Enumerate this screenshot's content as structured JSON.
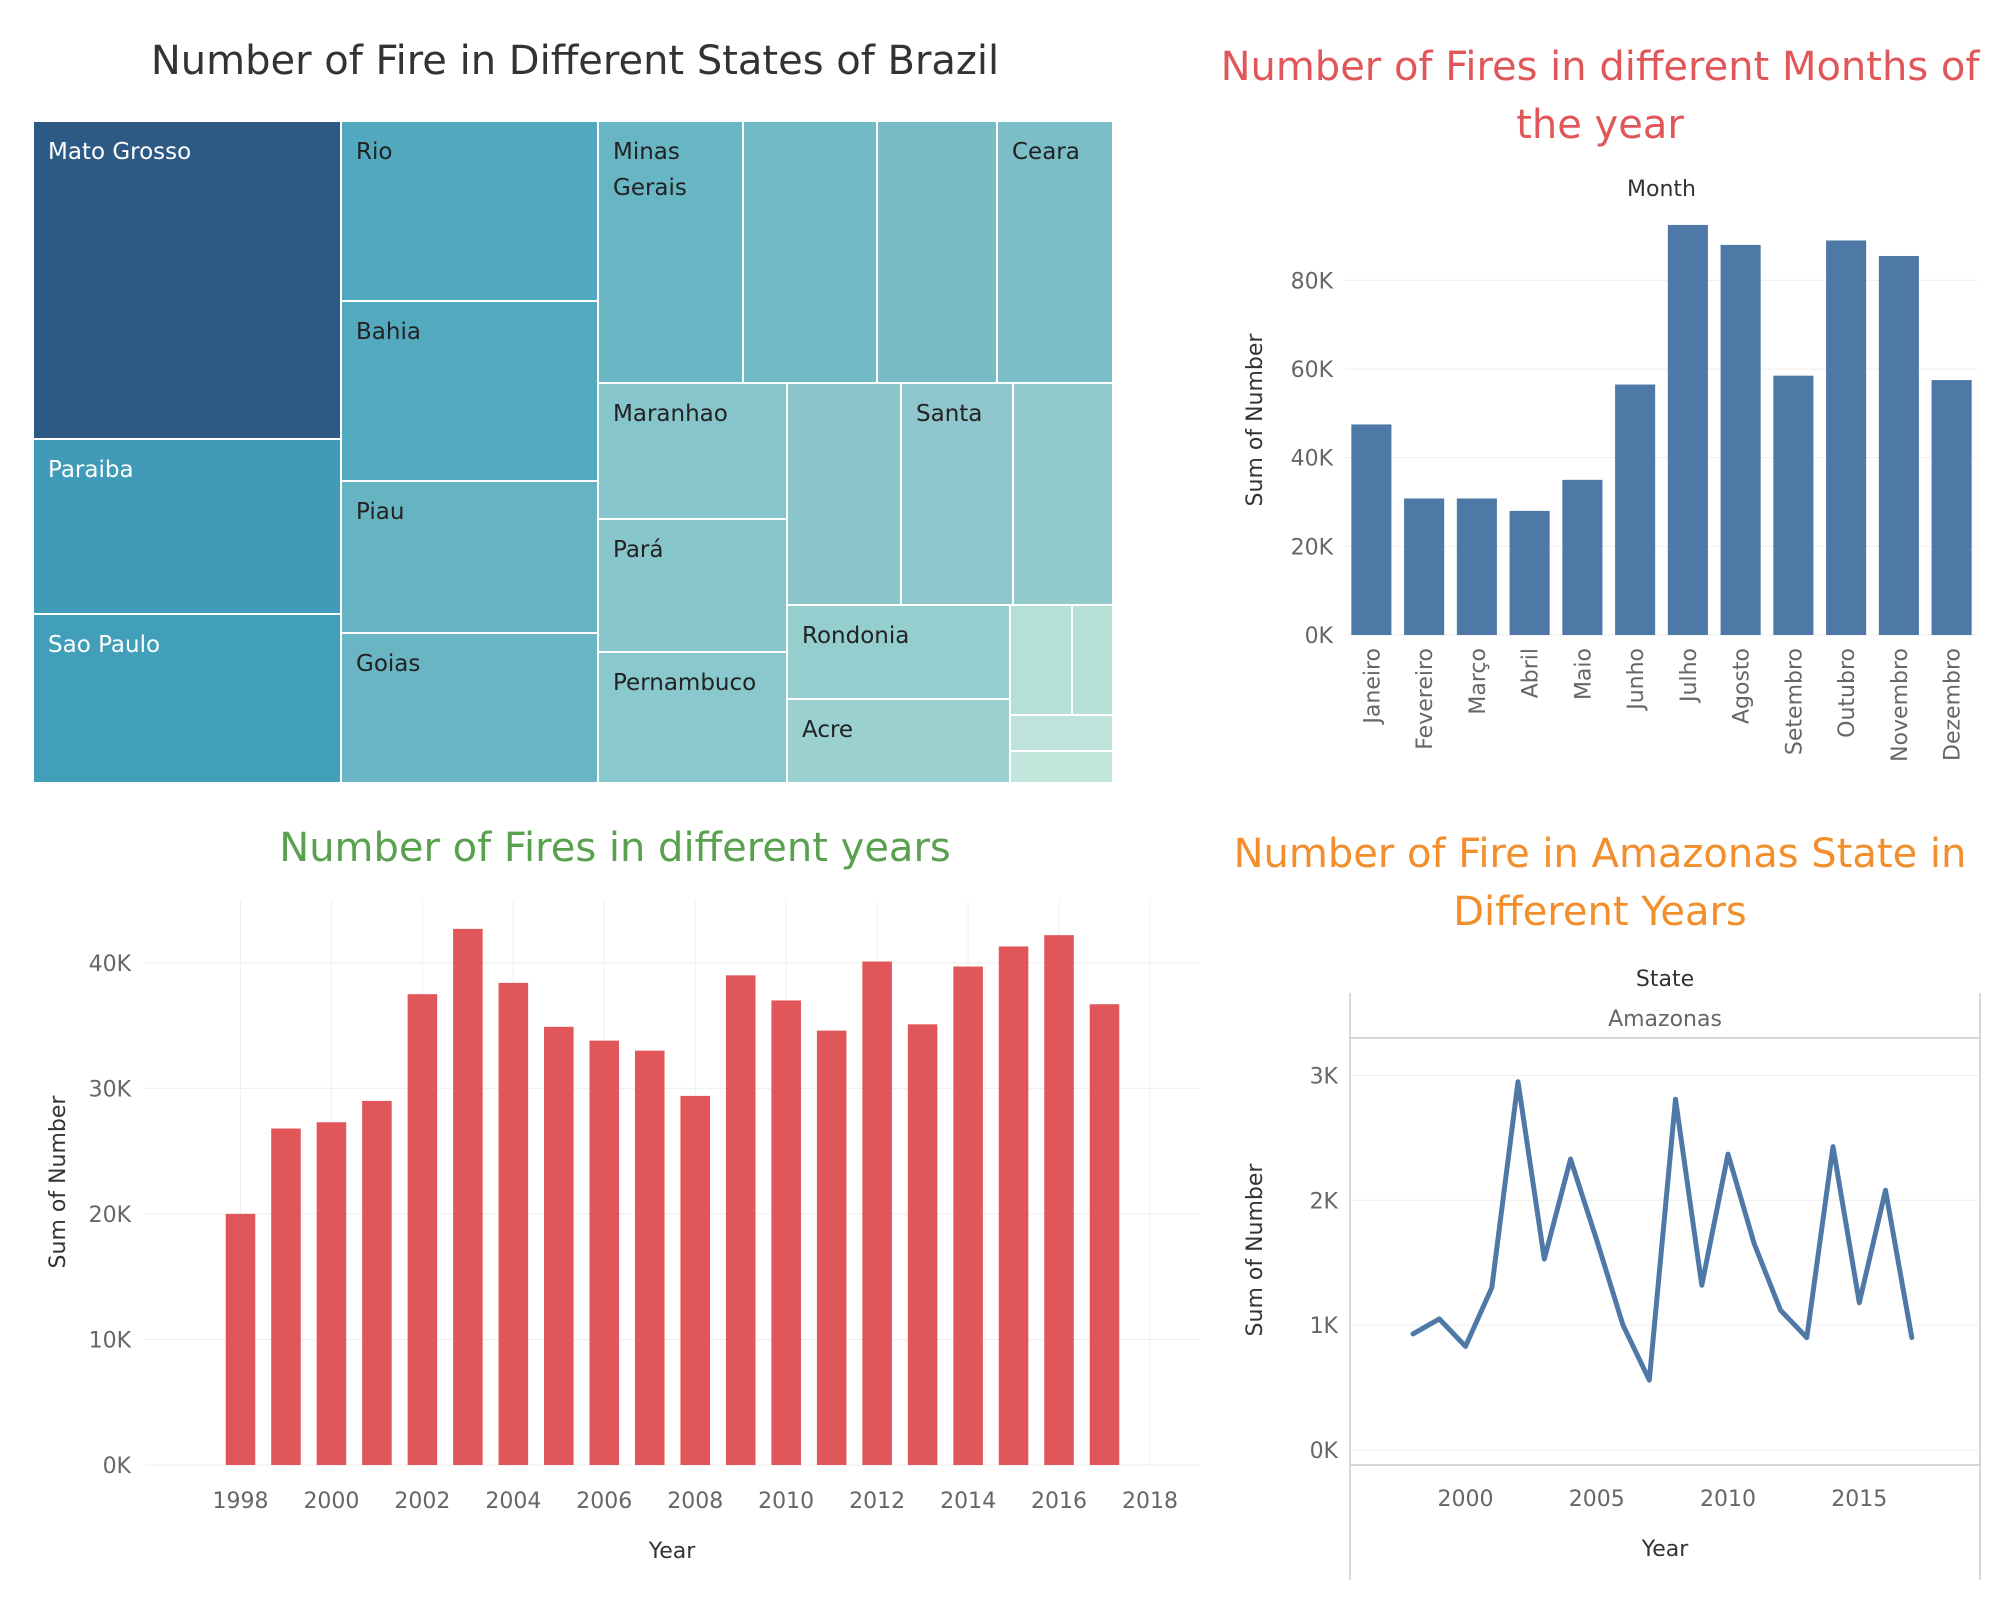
{
  "colors": {
    "treemap_dark": "#2d5a85",
    "months_bar": "#4e79a7",
    "years_bar": "#e15759",
    "amazonas_line": "#4e79a7",
    "title_treemap": "#333333",
    "title_months": "#e15759",
    "title_years": "#59a14f",
    "title_amazonas": "#f28e2b"
  },
  "chart_data": [
    {
      "type": "treemap",
      "title": "Number of Fire in Different States of Brazil",
      "cells": [
        {
          "label": "Mato Grosso",
          "color": "#2d5a85"
        },
        {
          "label": "Paraiba",
          "color": "#3f9bb7"
        },
        {
          "label": "Sao Paulo",
          "color": "#419fba"
        },
        {
          "label": "Rio",
          "color": "#52a9bf"
        },
        {
          "label": "Bahia",
          "color": "#53aabf"
        },
        {
          "label": "Piau",
          "color": "#66b3c2"
        },
        {
          "label": "Goias",
          "color": "#69b5c3"
        },
        {
          "label": "Minas Gerais",
          "color": "#68b5c4"
        },
        {
          "label": "",
          "color": "#72bac5"
        },
        {
          "label": "",
          "color": "#78bdc6"
        },
        {
          "label": "Ceara",
          "color": "#7bbec7"
        },
        {
          "label": "Maranhao",
          "color": "#85c5cb"
        },
        {
          "label": "Pará",
          "color": "#87c7cc"
        },
        {
          "label": "Pernambuco",
          "color": "#89c8cc"
        },
        {
          "label": "",
          "color": "#8bc6cb"
        },
        {
          "label": "Santa",
          "color": "#8fc5cc"
        },
        {
          "label": "",
          "color": "#93cbcd"
        },
        {
          "label": "Rondonia",
          "color": "#94cecf"
        },
        {
          "label": "Acre",
          "color": "#9ad1d0"
        },
        {
          "label": "",
          "color": "#b5e0d6"
        },
        {
          "label": "",
          "color": "#b7e1d7"
        },
        {
          "label": "",
          "color": "#bde3da"
        },
        {
          "label": "",
          "color": "#c1e6dc"
        }
      ]
    },
    {
      "type": "bar",
      "title": "Number of Fires in different Months of the year",
      "header": "Month",
      "ylabel": "Sum of Number",
      "categories": [
        "Janeiro",
        "Fevereiro",
        "Março",
        "Abril",
        "Maio",
        "Junho",
        "Julho",
        "Agosto",
        "Setembro",
        "Outubro",
        "Novembro",
        "Dezembro"
      ],
      "values": [
        47500,
        30800,
        30800,
        28000,
        35000,
        56500,
        92500,
        88000,
        58500,
        89000,
        85500,
        57500
      ],
      "yticks": [
        0,
        20000,
        40000,
        60000,
        80000
      ],
      "ytick_labels": [
        "0K",
        "20K",
        "40K",
        "60K",
        "80K"
      ],
      "ylim": [
        0,
        97000
      ],
      "grid": true
    },
    {
      "type": "bar",
      "title": "Number of Fires in different years",
      "xlabel": "Year",
      "ylabel": "Sum of Number",
      "x": [
        1998,
        1999,
        2000,
        2001,
        2002,
        2003,
        2004,
        2005,
        2006,
        2007,
        2008,
        2009,
        2010,
        2011,
        2012,
        2013,
        2014,
        2015,
        2016,
        2017
      ],
      "values": [
        20000,
        26800,
        27300,
        29000,
        37500,
        42700,
        38400,
        34900,
        33800,
        33000,
        29400,
        39000,
        37000,
        34600,
        40100,
        35100,
        39700,
        41300,
        42200,
        36700
      ],
      "xticks": [
        1998,
        2000,
        2002,
        2004,
        2006,
        2008,
        2010,
        2012,
        2014,
        2016,
        2018
      ],
      "xtick_labels": [
        "1998",
        "2000",
        "2002",
        "2004",
        "2006",
        "2008",
        "2010",
        "2012",
        "2014",
        "2016",
        "2018"
      ],
      "xlim": [
        1995.9,
        2019.1
      ],
      "yticks": [
        0,
        10000,
        20000,
        30000,
        40000
      ],
      "ytick_labels": [
        "0K",
        "10K",
        "20K",
        "30K",
        "40K"
      ],
      "ylim": [
        0,
        45000
      ],
      "grid": true
    },
    {
      "type": "line",
      "title": "Number of Fire in Amazonas State in Different Years",
      "header": "State",
      "panel": "Amazonas",
      "xlabel": "Year",
      "ylabel": "Sum of Number",
      "series": [
        {
          "x": [
            1998,
            1999,
            2000,
            2001,
            2002,
            2003,
            2004,
            2005,
            2006,
            2007,
            2008,
            2009,
            2010,
            2011,
            2012,
            2013,
            2014,
            2015,
            2016,
            2017
          ],
          "values": [
            930,
            1050,
            830,
            1300,
            2950,
            1530,
            2330,
            1680,
            1000,
            560,
            2810,
            1320,
            2370,
            1650,
            1120,
            900,
            2430,
            1180,
            2080,
            900
          ]
        }
      ],
      "xticks": [
        2000,
        2005,
        2010,
        2015
      ],
      "xtick_labels": [
        "2000",
        "2005",
        "2010",
        "2015"
      ],
      "xlim": [
        1995.6,
        2019.6
      ],
      "yticks": [
        0,
        1000,
        2000,
        3000
      ],
      "ytick_labels": [
        "0K",
        "1K",
        "2K",
        "3K"
      ],
      "ylim": [
        -120,
        3300
      ],
      "grid": true
    }
  ]
}
